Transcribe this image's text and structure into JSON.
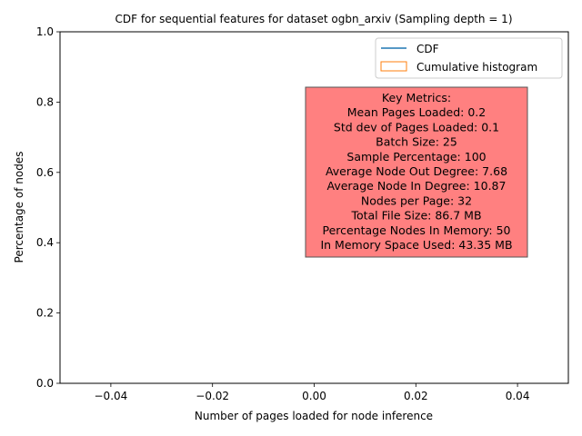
{
  "chart_data": {
    "type": "line",
    "title": "CDF for sequential features for dataset ogbn_arxiv (Sampling depth = 1)",
    "xlabel": "Number of pages loaded for node inference",
    "ylabel": "Percentage of nodes",
    "xlim": [
      -0.05,
      0.05
    ],
    "ylim": [
      0.0,
      1.0
    ],
    "x_ticks": [
      -0.04,
      -0.02,
      0.0,
      0.02,
      0.04
    ],
    "x_tick_labels": [
      "−0.04",
      "−0.02",
      "0.00",
      "0.02",
      "0.04"
    ],
    "y_ticks": [
      0.0,
      0.2,
      0.4,
      0.6,
      0.8,
      1.0
    ],
    "y_tick_labels": [
      "0.0",
      "0.2",
      "0.4",
      "0.6",
      "0.8",
      "1.0"
    ],
    "grid": false,
    "legend_position": "top-right",
    "series": [
      {
        "name": "CDF",
        "kind": "line",
        "color": "#1f77b4",
        "x": [],
        "y": []
      },
      {
        "name": "Cumulative histogram",
        "kind": "step-histogram",
        "color": "#ff7f0e",
        "x": [],
        "y": []
      }
    ],
    "annotation": {
      "background": "#ff8080",
      "lines": [
        "Key Metrics:",
        "Mean Pages Loaded: 0.2",
        "Std dev of Pages Loaded: 0.1",
        "Batch Size: 25",
        "Sample Percentage: 100",
        "Average Node Out Degree: 7.68",
        "Average Node In Degree: 10.87",
        "Nodes per Page: 32",
        "Total File Size: 86.7 MB",
        "Percentage Nodes In Memory: 50",
        "In Memory Space Used: 43.35 MB"
      ]
    }
  }
}
